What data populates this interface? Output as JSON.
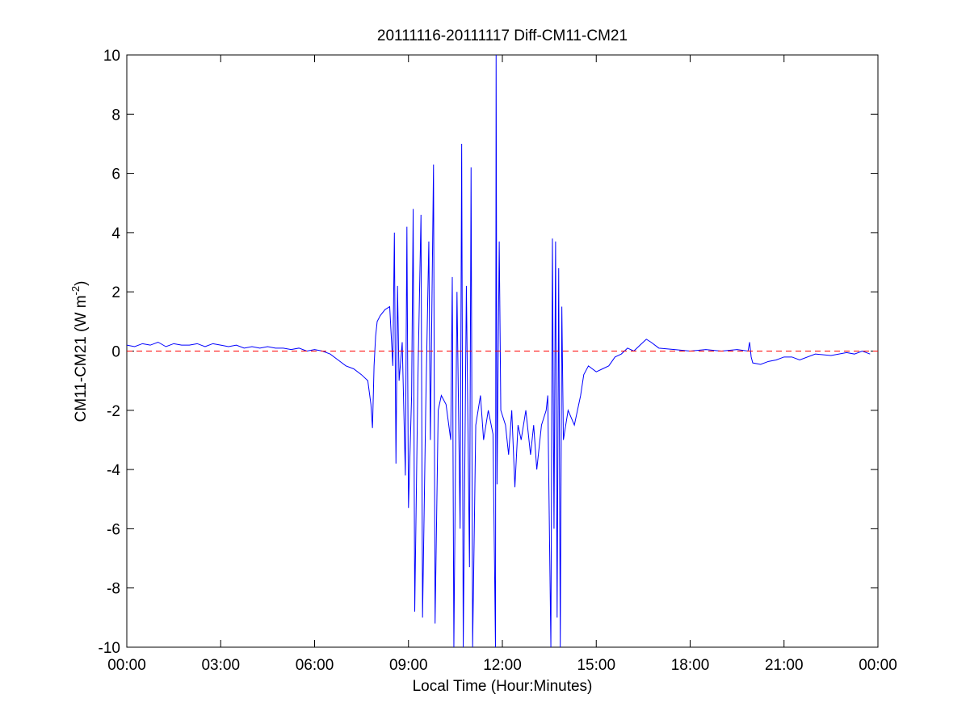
{
  "chart_data": {
    "type": "line",
    "title": "20111116-20111117 Diff-CM11-CM21",
    "xlabel": "Local Time (Hour:Minutes)",
    "ylabel": {
      "text": "CM11-CM21 (W m",
      "superscript": "-2",
      "suffix": ")"
    },
    "xlim": [
      0,
      24
    ],
    "xticks": [
      {
        "value": 0,
        "label": "00:00"
      },
      {
        "value": 3,
        "label": "03:00"
      },
      {
        "value": 6,
        "label": "06:00"
      },
      {
        "value": 9,
        "label": "09:00"
      },
      {
        "value": 12,
        "label": "12:00"
      },
      {
        "value": 15,
        "label": "15:00"
      },
      {
        "value": 18,
        "label": "18:00"
      },
      {
        "value": 21,
        "label": "21:00"
      },
      {
        "value": 24,
        "label": "00:00"
      }
    ],
    "ylim": [
      -10,
      10
    ],
    "yticks": [
      -10,
      -8,
      -6,
      -4,
      -2,
      0,
      2,
      4,
      6,
      8,
      10
    ],
    "grid": false,
    "reference_line": {
      "value": 0,
      "color": "#ff0000",
      "style": "dashed"
    },
    "x": [
      0,
      0.25,
      0.5,
      0.75,
      1,
      1.25,
      1.5,
      1.75,
      2,
      2.25,
      2.5,
      2.75,
      3,
      3.25,
      3.5,
      3.75,
      4,
      4.25,
      4.5,
      4.75,
      5,
      5.25,
      5.5,
      5.75,
      6,
      6.25,
      6.5,
      6.75,
      7,
      7.25,
      7.5,
      7.7,
      7.8,
      7.85,
      7.9,
      7.95,
      8.0,
      8.1,
      8.25,
      8.4,
      8.5,
      8.55,
      8.6,
      8.65,
      8.7,
      8.8,
      8.9,
      8.95,
      9.0,
      9.1,
      9.15,
      9.2,
      9.3,
      9.4,
      9.45,
      9.55,
      9.65,
      9.7,
      9.8,
      9.85,
      9.95,
      10.05,
      10.2,
      10.35,
      10.4,
      10.45,
      10.55,
      10.65,
      10.7,
      10.75,
      10.85,
      10.95,
      11.0,
      11.05,
      11.15,
      11.3,
      11.4,
      11.55,
      11.7,
      11.75,
      11.78,
      11.8,
      11.83,
      11.9,
      11.95,
      12.1,
      12.2,
      12.3,
      12.4,
      12.5,
      12.6,
      12.75,
      12.9,
      13.0,
      13.1,
      13.25,
      13.4,
      13.45,
      13.55,
      13.6,
      13.65,
      13.7,
      13.75,
      13.8,
      13.85,
      13.9,
      13.95,
      14.1,
      14.3,
      14.5,
      14.6,
      14.75,
      15.0,
      15.2,
      15.4,
      15.6,
      15.8,
      16.0,
      16.2,
      16.4,
      16.6,
      16.75,
      17.0,
      17.5,
      18.0,
      18.5,
      19.0,
      19.5,
      19.85,
      19.9,
      19.95,
      20.0,
      20.25,
      20.5,
      20.75,
      21.0,
      21.25,
      21.5,
      22.0,
      22.5,
      23.0,
      23.25,
      23.5,
      23.75
    ],
    "series": [
      {
        "color": "#0000ff",
        "values": [
          0.2,
          0.15,
          0.25,
          0.2,
          0.3,
          0.15,
          0.25,
          0.2,
          0.2,
          0.25,
          0.15,
          0.25,
          0.2,
          0.15,
          0.2,
          0.1,
          0.15,
          0.1,
          0.15,
          0.1,
          0.1,
          0.05,
          0.1,
          0.0,
          0.05,
          0.0,
          -0.1,
          -0.3,
          -0.5,
          -0.6,
          -0.8,
          -1.0,
          -1.8,
          -2.6,
          -0.5,
          0.5,
          1.0,
          1.2,
          1.4,
          1.5,
          -0.5,
          4.0,
          -3.8,
          2.2,
          -1.0,
          0.3,
          -4.2,
          4.2,
          -5.3,
          -1.5,
          4.8,
          -8.8,
          -1.0,
          4.6,
          -9.0,
          -2.0,
          3.7,
          -3.0,
          6.3,
          -9.2,
          -2.0,
          -1.5,
          -1.8,
          -3.0,
          2.5,
          -10,
          2.0,
          -6.0,
          7.0,
          -10,
          2.2,
          -7.3,
          6.2,
          -10,
          -2.5,
          -1.5,
          -3.0,
          -2.0,
          -2.8,
          -7.2,
          -10,
          10,
          -4.5,
          3.7,
          -2.0,
          -2.5,
          -3.5,
          -2.0,
          -4.6,
          -2.5,
          -3.0,
          -2.0,
          -3.5,
          -2.5,
          -4.0,
          -2.5,
          -2.0,
          -1.5,
          -10,
          3.8,
          -6.0,
          3.7,
          -9.0,
          2.8,
          -10,
          1.5,
          -3.0,
          -2.0,
          -2.5,
          -1.5,
          -0.8,
          -0.5,
          -0.7,
          -0.6,
          -0.5,
          -0.2,
          -0.1,
          0.1,
          0.0,
          0.2,
          0.4,
          0.3,
          0.1,
          0.05,
          0.0,
          0.05,
          0.0,
          0.05,
          0.0,
          0.3,
          -0.2,
          -0.4,
          -0.45,
          -0.35,
          -0.3,
          -0.2,
          -0.2,
          -0.3,
          -0.1,
          -0.15,
          -0.05,
          -0.1,
          0.0,
          -0.1
        ]
      }
    ]
  }
}
